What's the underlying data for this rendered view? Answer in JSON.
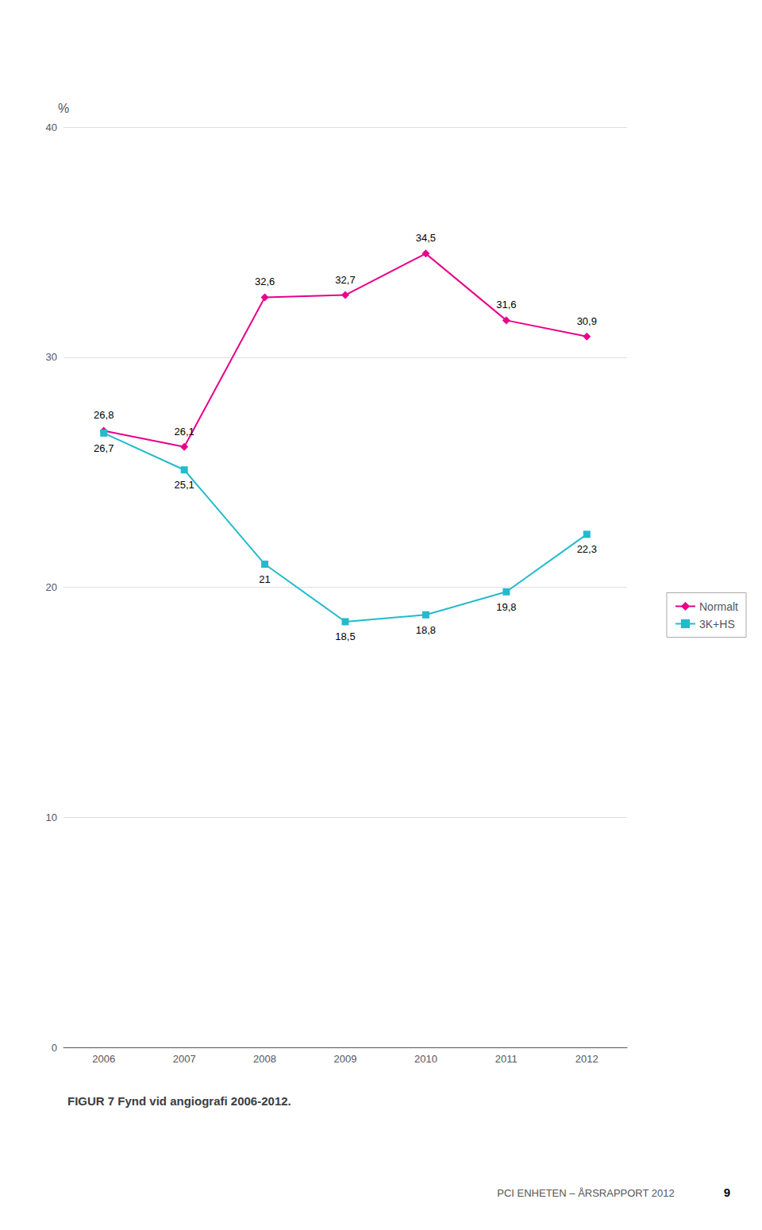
{
  "chart_data": {
    "type": "line",
    "title": "FIGUR 7 Fynd vid angiografi 2006-2012.",
    "ylabel": "%",
    "categories": [
      "2006",
      "2007",
      "2008",
      "2009",
      "2010",
      "2011",
      "2012"
    ],
    "series": [
      {
        "name": "Normalt",
        "color": "#e8008a",
        "marker": "diamond",
        "values": [
          26.8,
          26.1,
          32.6,
          32.7,
          34.5,
          31.6,
          30.9
        ],
        "value_labels": [
          "26,8",
          "26,1",
          "32,6",
          "32,7",
          "34,5",
          "31,6",
          "30,9"
        ]
      },
      {
        "name": "3K+HS",
        "color": "#22bbcc",
        "marker": "square",
        "values": [
          26.7,
          25.1,
          21.0,
          18.5,
          18.8,
          19.8,
          22.3
        ],
        "value_labels": [
          "26,7",
          "25,1",
          "21",
          "18,5",
          "18,8",
          "19,8",
          "22,3"
        ]
      }
    ],
    "ylim": [
      0,
      40
    ],
    "yticks": [
      0,
      10,
      20,
      30,
      40
    ],
    "grid": true,
    "legend": "right",
    "data_labels": true,
    "annotations": [
      "PCI ENHETEN – ÅRSRAPPORT 2012",
      "9"
    ]
  }
}
